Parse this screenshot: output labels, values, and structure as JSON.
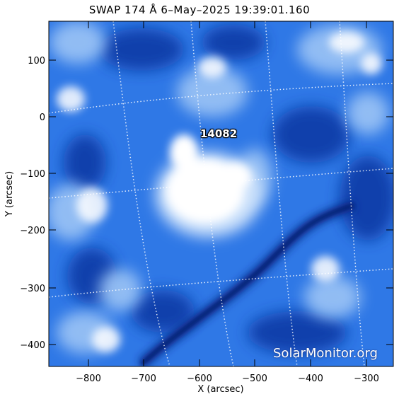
{
  "title": "SWAP 174 Å  6–May–2025 19:39:01.160",
  "region_label": "14082",
  "watermark": "SolarMonitor.org",
  "xaxis": {
    "label": "X (arcsec)",
    "ticks": [
      "−800",
      "−700",
      "−600",
      "−500",
      "−400",
      "−300"
    ]
  },
  "yaxis": {
    "label": "Y (arcsec)",
    "ticks": [
      "100",
      "0",
      "−100",
      "−200",
      "−300",
      "−400"
    ]
  },
  "colors": {
    "image_base": "#2f78e6",
    "image_dark": "#0a2a8a",
    "image_bright": "#ffffff",
    "grid": "#ffffff"
  }
}
